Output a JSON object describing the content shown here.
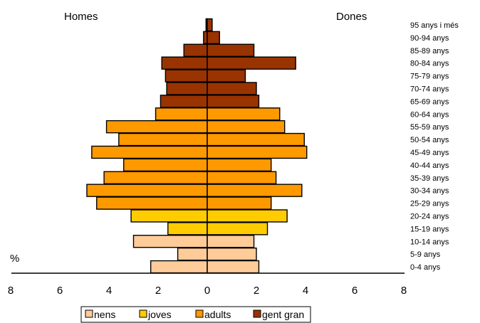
{
  "labels": {
    "men": "Homes",
    "women": "Dones",
    "unit": "%"
  },
  "colors": {
    "nens": "#FFCC99",
    "joves": "#FFCC00",
    "adults": "#FF9900",
    "gent_gran": "#993300"
  },
  "chart_data": {
    "type": "bar",
    "orientation": "horizontal-population-pyramid",
    "categories": [
      "0-4 anys",
      "5-9 anys",
      "10-14 anys",
      "15-19 anys",
      "20-24 anys",
      "25-29 anys",
      "30-34 anys",
      "35-39 anys",
      "40-44 anys",
      "45-49 anys",
      "50-54 anys",
      "55-59 anys",
      "60-64 anys",
      "65-69 anys",
      "70-74 anys",
      "75-79 anys",
      "80-84 anys",
      "85-89 anys",
      "90-94 anys",
      "95 anys i més"
    ],
    "groups": [
      "nens",
      "nens",
      "nens",
      "joves",
      "joves",
      "adults",
      "adults",
      "adults",
      "adults",
      "adults",
      "adults",
      "adults",
      "adults",
      "gent_gran",
      "gent_gran",
      "gent_gran",
      "gent_gran",
      "gent_gran",
      "gent_gran",
      "gent_gran"
    ],
    "series": [
      {
        "name": "Homes",
        "values": [
          2.3,
          1.2,
          3.0,
          1.6,
          3.1,
          4.5,
          4.9,
          4.2,
          3.4,
          4.7,
          3.6,
          4.1,
          2.1,
          1.9,
          1.65,
          1.7,
          1.85,
          0.95,
          0.15,
          0.05
        ]
      },
      {
        "name": "Dones",
        "values": [
          2.1,
          2.0,
          1.9,
          2.45,
          3.25,
          2.6,
          3.85,
          2.8,
          2.6,
          4.05,
          3.95,
          3.15,
          2.95,
          2.1,
          2.0,
          1.55,
          3.6,
          1.9,
          0.5,
          0.2
        ]
      }
    ],
    "legend": [
      {
        "key": "nens",
        "label": "nens"
      },
      {
        "key": "joves",
        "label": "joves"
      },
      {
        "key": "adults",
        "label": "adults"
      },
      {
        "key": "gent_gran",
        "label": "gent gran"
      }
    ],
    "xticks": [
      "8",
      "6",
      "4",
      "2",
      "0",
      "2",
      "4",
      "6",
      "8"
    ],
    "xlim": [
      -8,
      8
    ],
    "legend_position": "bottom-center",
    "grid": false
  }
}
